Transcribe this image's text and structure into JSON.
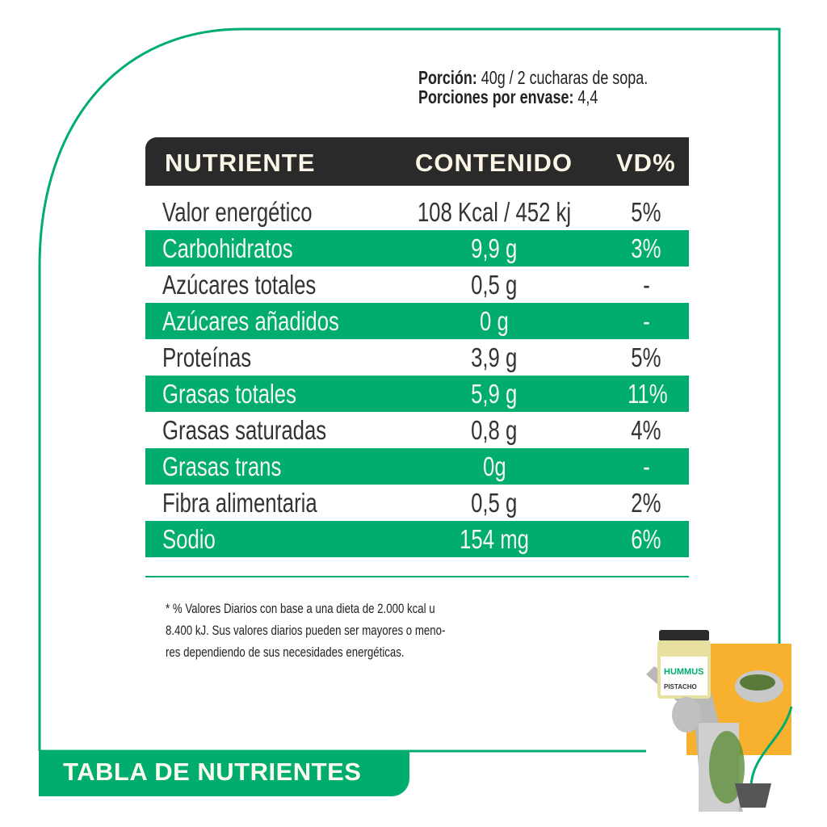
{
  "serving": {
    "portion_label": "Porción:",
    "portion_value": "40g / 2 cucharas de sopa.",
    "per_container_label": "Porciones por envase:",
    "per_container_value": "4,4"
  },
  "table": {
    "headers": [
      "NUTRIENTE",
      "CONTENIDO",
      "VD%"
    ],
    "rows": [
      [
        "Valor energético",
        "108 Kcal / 452 kj",
        "5%"
      ],
      [
        "Carbohidratos",
        "9,9 g",
        "3%"
      ],
      [
        "Azúcares totales",
        "0,5 g",
        "-"
      ],
      [
        "Azúcares añadidos",
        "0 g",
        "-"
      ],
      [
        "Proteínas",
        "3,9 g",
        "5%"
      ],
      [
        "Grasas totales",
        "5,9 g",
        "11%"
      ],
      [
        "Grasas saturadas",
        "0,8 g",
        "4%"
      ],
      [
        "Grasas trans",
        "0g",
        "-"
      ],
      [
        "Fibra alimentaria",
        "0,5 g",
        "2%"
      ],
      [
        "Sodio",
        "154 mg",
        "6%"
      ]
    ]
  },
  "footnote": [
    "* % Valores Diarios con base a una dieta de 2.000 kcal u",
    "8.400 kJ. Sus valores diarios pueden ser mayores o meno-",
    "res dependiendo de sus necesidades energéticas."
  ],
  "banner": "TABLA DE NUTRIENTES",
  "product_jar_text": [
    "HUMMUS",
    "PISTACHO"
  ],
  "colors": {
    "brand_green": "#00ad6e",
    "header_dark": "#2a2a2a",
    "accent_orange": "#f7b12e"
  }
}
